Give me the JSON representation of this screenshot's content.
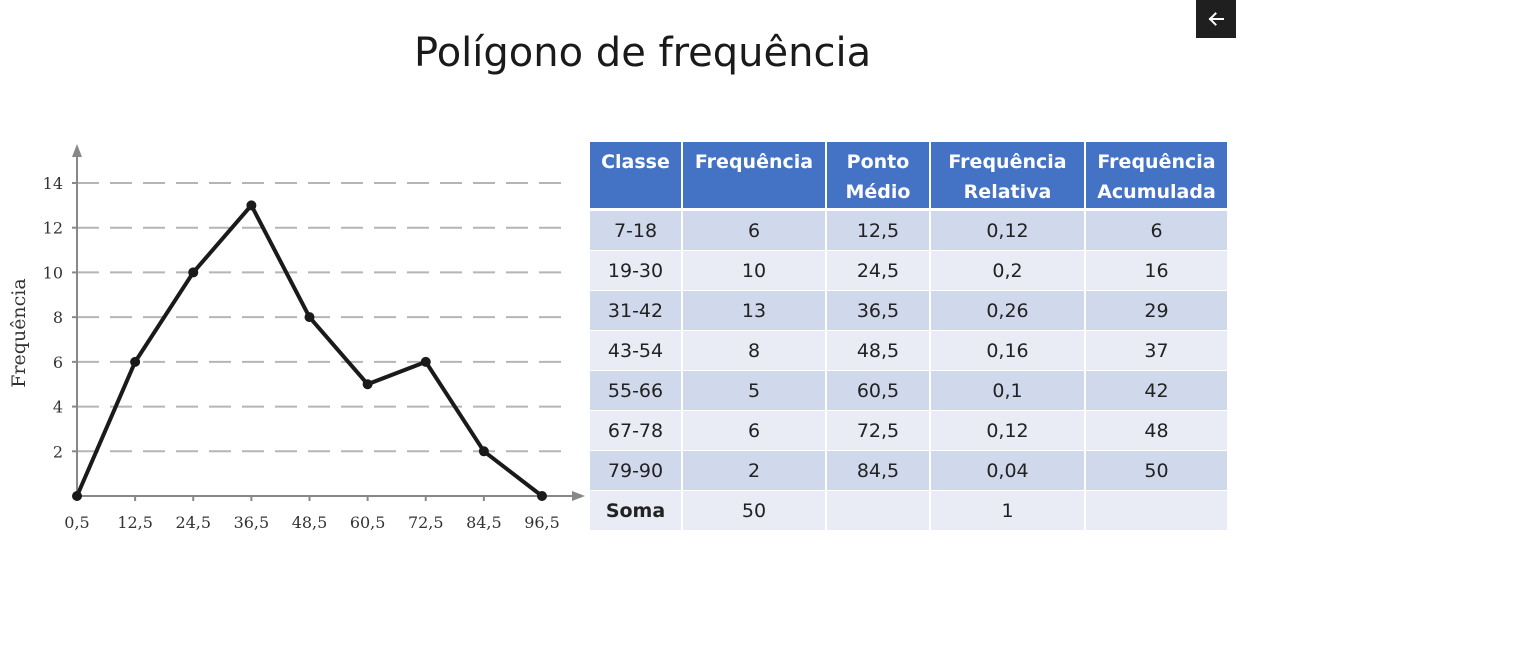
{
  "title": "Polígono de frequência",
  "back_button_icon": "arrow-left-icon",
  "chart_data": {
    "type": "line",
    "ylabel": "Frequência",
    "xlabel": "",
    "x": [
      0.5,
      12.5,
      24.5,
      36.5,
      48.5,
      60.5,
      72.5,
      84.5,
      96.5
    ],
    "y": [
      0,
      6,
      10,
      13,
      8,
      5,
      6,
      2,
      0
    ],
    "x_tick_labels": [
      "0,5",
      "12,5",
      "24,5",
      "36,5",
      "48,5",
      "60,5",
      "72,5",
      "84,5",
      "96,5"
    ],
    "y_ticks": [
      2,
      4,
      6,
      8,
      10,
      12,
      14
    ],
    "y_tick_labels": [
      "2",
      "4",
      "6",
      "8",
      "10",
      "12",
      "14"
    ],
    "xlim": [
      0.5,
      96.5
    ],
    "ylim": [
      0,
      14
    ],
    "grid": "dashed horizontal",
    "line_color": "#1a1a1a"
  },
  "table": {
    "headers": [
      [
        "Classe"
      ],
      [
        "Frequência"
      ],
      [
        "Ponto",
        "Médio"
      ],
      [
        "Frequência",
        "Relativa"
      ],
      [
        "Frequência",
        "Acumulada"
      ]
    ],
    "rows": [
      [
        "7-18",
        "6",
        "12,5",
        "0,12",
        "6"
      ],
      [
        "19-30",
        "10",
        "24,5",
        "0,2",
        "16"
      ],
      [
        "31-42",
        "13",
        "36,5",
        "0,26",
        "29"
      ],
      [
        "43-54",
        "8",
        "48,5",
        "0,16",
        "37"
      ],
      [
        "55-66",
        "5",
        "60,5",
        "0,1",
        "42"
      ],
      [
        "67-78",
        "6",
        "72,5",
        "0,12",
        "48"
      ],
      [
        "79-90",
        "2",
        "84,5",
        "0,04",
        "50"
      ]
    ],
    "sum_row": [
      "Soma",
      "50",
      "",
      "1",
      ""
    ],
    "header_color": "#4472c4",
    "row_color_dark": "#d0d8eb",
    "row_color_light": "#e9ecf5"
  }
}
